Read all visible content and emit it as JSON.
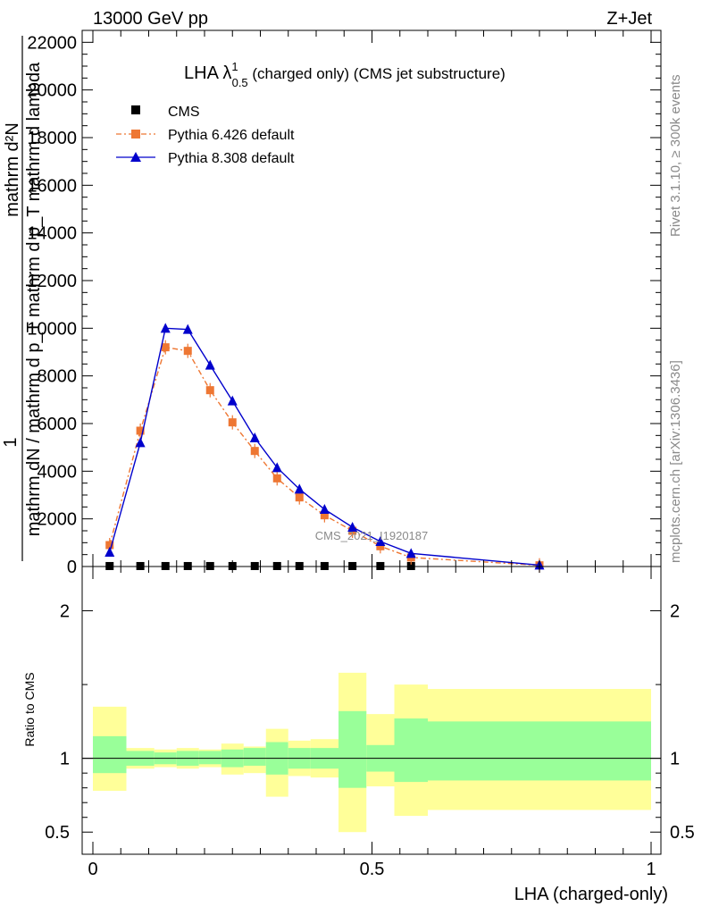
{
  "header": {
    "left": "13000 GeV pp",
    "right": "Z+Jet"
  },
  "side_text": {
    "rivet": "Rivet 3.1.10, ≥ 300k events",
    "mcplots": "mcplots.cern.ch [arXiv:1306.3436]"
  },
  "watermark": "CMS_2021_I1920187",
  "colors": {
    "cms": "#000000",
    "pythia6": "#ee7733",
    "pythia8": "#0000cc",
    "band_inner": "#99ff99",
    "band_outer": "#ffff99"
  },
  "chart_data": [
    {
      "type": "line",
      "panel": "main",
      "title": "LHA λ",
      "title_sup": "1",
      "title_sub": "0.5",
      "title_rest": " (charged only) (CMS jet substructure)",
      "ylabel_numerator": "mathrm d²N",
      "ylabel_one": "1",
      "ylabel_denominator": "mathrm dN / mathrm d p_T mathrm d p_T mathrm d lambda",
      "xlim": [
        0,
        1
      ],
      "ylim": [
        0,
        22500
      ],
      "yticks": [
        0,
        2000,
        4000,
        6000,
        8000,
        10000,
        12000,
        14000,
        16000,
        18000,
        20000,
        22000
      ],
      "ytick_labels": [
        "0",
        "2000",
        "4000",
        "6000",
        "8000",
        "10000",
        "12000",
        "14000",
        "16000",
        "18000",
        "20000",
        "22000"
      ],
      "legend": [
        "CMS",
        "Pythia 6.426 default",
        "Pythia 8.308 default"
      ],
      "series": [
        {
          "name": "CMS",
          "marker": "square",
          "x": [
            0.03,
            0.085,
            0.13,
            0.17,
            0.21,
            0.25,
            0.29,
            0.33,
            0.37,
            0.415,
            0.465,
            0.515,
            0.57
          ],
          "values": [
            20,
            20,
            20,
            20,
            20,
            20,
            20,
            20,
            20,
            20,
            20,
            20,
            20
          ]
        },
        {
          "name": "Pythia 6.426 default",
          "marker": "square",
          "x": [
            0.03,
            0.085,
            0.13,
            0.17,
            0.21,
            0.25,
            0.29,
            0.33,
            0.37,
            0.415,
            0.465,
            0.515,
            0.57,
            0.8
          ],
          "values": [
            900,
            5700,
            9200,
            9050,
            7400,
            6050,
            4850,
            3700,
            2900,
            2150,
            1500,
            850,
            380,
            50
          ]
        },
        {
          "name": "Pythia 8.308 default",
          "marker": "triangle",
          "x": [
            0.03,
            0.085,
            0.13,
            0.17,
            0.21,
            0.25,
            0.29,
            0.33,
            0.37,
            0.415,
            0.465,
            0.515,
            0.57,
            0.8
          ],
          "values": [
            600,
            5200,
            10000,
            9950,
            8450,
            6950,
            5400,
            4150,
            3250,
            2400,
            1650,
            1050,
            550,
            60
          ]
        }
      ]
    },
    {
      "type": "area",
      "panel": "ratio",
      "ylabel": "Ratio to CMS",
      "xlabel": "LHA (charged-only)",
      "xlim": [
        0,
        1
      ],
      "ylim": [
        0.35,
        2.3
      ],
      "yticks": [
        0.5,
        1,
        2
      ],
      "ytick_labels": [
        "0.5",
        "1",
        "2"
      ],
      "xticks": [
        0,
        0.5,
        1
      ],
      "xtick_labels": [
        "0",
        "0.5",
        "1"
      ],
      "bins": [
        {
          "x0": 0.0,
          "x1": 0.06,
          "inner": [
            0.9,
            1.15
          ],
          "outer": [
            0.78,
            1.35
          ]
        },
        {
          "x0": 0.06,
          "x1": 0.11,
          "inner": [
            0.95,
            1.05
          ],
          "outer": [
            0.93,
            1.07
          ]
        },
        {
          "x0": 0.11,
          "x1": 0.15,
          "inner": [
            0.96,
            1.04
          ],
          "outer": [
            0.94,
            1.06
          ]
        },
        {
          "x0": 0.15,
          "x1": 0.19,
          "inner": [
            0.95,
            1.05
          ],
          "outer": [
            0.93,
            1.07
          ]
        },
        {
          "x0": 0.19,
          "x1": 0.23,
          "inner": [
            0.96,
            1.05
          ],
          "outer": [
            0.94,
            1.06
          ]
        },
        {
          "x0": 0.23,
          "x1": 0.27,
          "inner": [
            0.94,
            1.06
          ],
          "outer": [
            0.89,
            1.1
          ]
        },
        {
          "x0": 0.27,
          "x1": 0.31,
          "inner": [
            0.95,
            1.07
          ],
          "outer": [
            0.9,
            1.08
          ]
        },
        {
          "x0": 0.31,
          "x1": 0.35,
          "inner": [
            0.89,
            1.11
          ],
          "outer": [
            0.74,
            1.2
          ]
        },
        {
          "x0": 0.35,
          "x1": 0.39,
          "inner": [
            0.93,
            1.07
          ],
          "outer": [
            0.88,
            1.12
          ]
        },
        {
          "x0": 0.39,
          "x1": 0.44,
          "inner": [
            0.93,
            1.07
          ],
          "outer": [
            0.87,
            1.13
          ]
        },
        {
          "x0": 0.44,
          "x1": 0.49,
          "inner": [
            0.8,
            1.32
          ],
          "outer": [
            0.5,
            1.58
          ]
        },
        {
          "x0": 0.49,
          "x1": 0.54,
          "inner": [
            0.91,
            1.09
          ],
          "outer": [
            0.81,
            1.3
          ]
        },
        {
          "x0": 0.54,
          "x1": 0.6,
          "inner": [
            0.84,
            1.27
          ],
          "outer": [
            0.61,
            1.5
          ]
        },
        {
          "x0": 0.6,
          "x1": 1.0,
          "inner": [
            0.85,
            1.25
          ],
          "outer": [
            0.65,
            1.47
          ]
        }
      ]
    }
  ]
}
